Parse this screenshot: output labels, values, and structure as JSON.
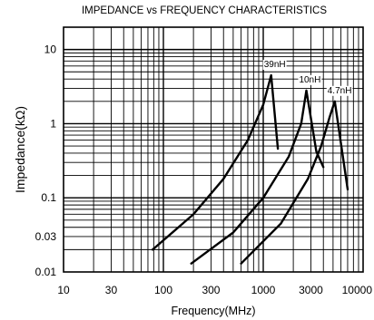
{
  "chart_data": {
    "type": "line",
    "title": "IMPEDANCE vs FREQUENCY CHARACTERISTICS",
    "xlabel": "Frequency(MHz)",
    "ylabel": "Impedance(kΩ)",
    "x_scale": "log",
    "y_scale": "log",
    "xlim": [
      10,
      10000
    ],
    "ylim": [
      0.01,
      20
    ],
    "x_ticks": [
      {
        "value": 10,
        "label": "10"
      },
      {
        "value": 30,
        "label": "30"
      },
      {
        "value": 100,
        "label": "100"
      },
      {
        "value": 300,
        "label": "300"
      },
      {
        "value": 1000,
        "label": "1000"
      },
      {
        "value": 3000,
        "label": "3000"
      },
      {
        "value": 10000,
        "label": "10000"
      }
    ],
    "y_ticks": [
      {
        "value": 10,
        "label": "10"
      },
      {
        "value": 1,
        "label": "1"
      },
      {
        "value": 0.1,
        "label": "0.1"
      },
      {
        "value": 0.03,
        "label": "0.03"
      },
      {
        "value": 0.01,
        "label": "0.01"
      }
    ],
    "grid": true,
    "series": [
      {
        "name": "39nH",
        "x": [
          78,
          200,
          400,
          700,
          1000,
          1200,
          1400
        ],
        "y": [
          0.02,
          0.06,
          0.18,
          0.6,
          1.8,
          4.5,
          0.46
        ]
      },
      {
        "name": "10nH",
        "x": [
          190,
          500,
          1000,
          1800,
          2400,
          2700,
          3400,
          4000
        ],
        "y": [
          0.013,
          0.034,
          0.1,
          0.36,
          1.0,
          2.8,
          0.42,
          0.26
        ]
      },
      {
        "name": "4.7nH",
        "x": [
          600,
          1500,
          2800,
          3800,
          4600,
          5200,
          7000
        ],
        "y": [
          0.013,
          0.045,
          0.18,
          0.5,
          1.2,
          2.0,
          0.13
        ]
      }
    ]
  }
}
